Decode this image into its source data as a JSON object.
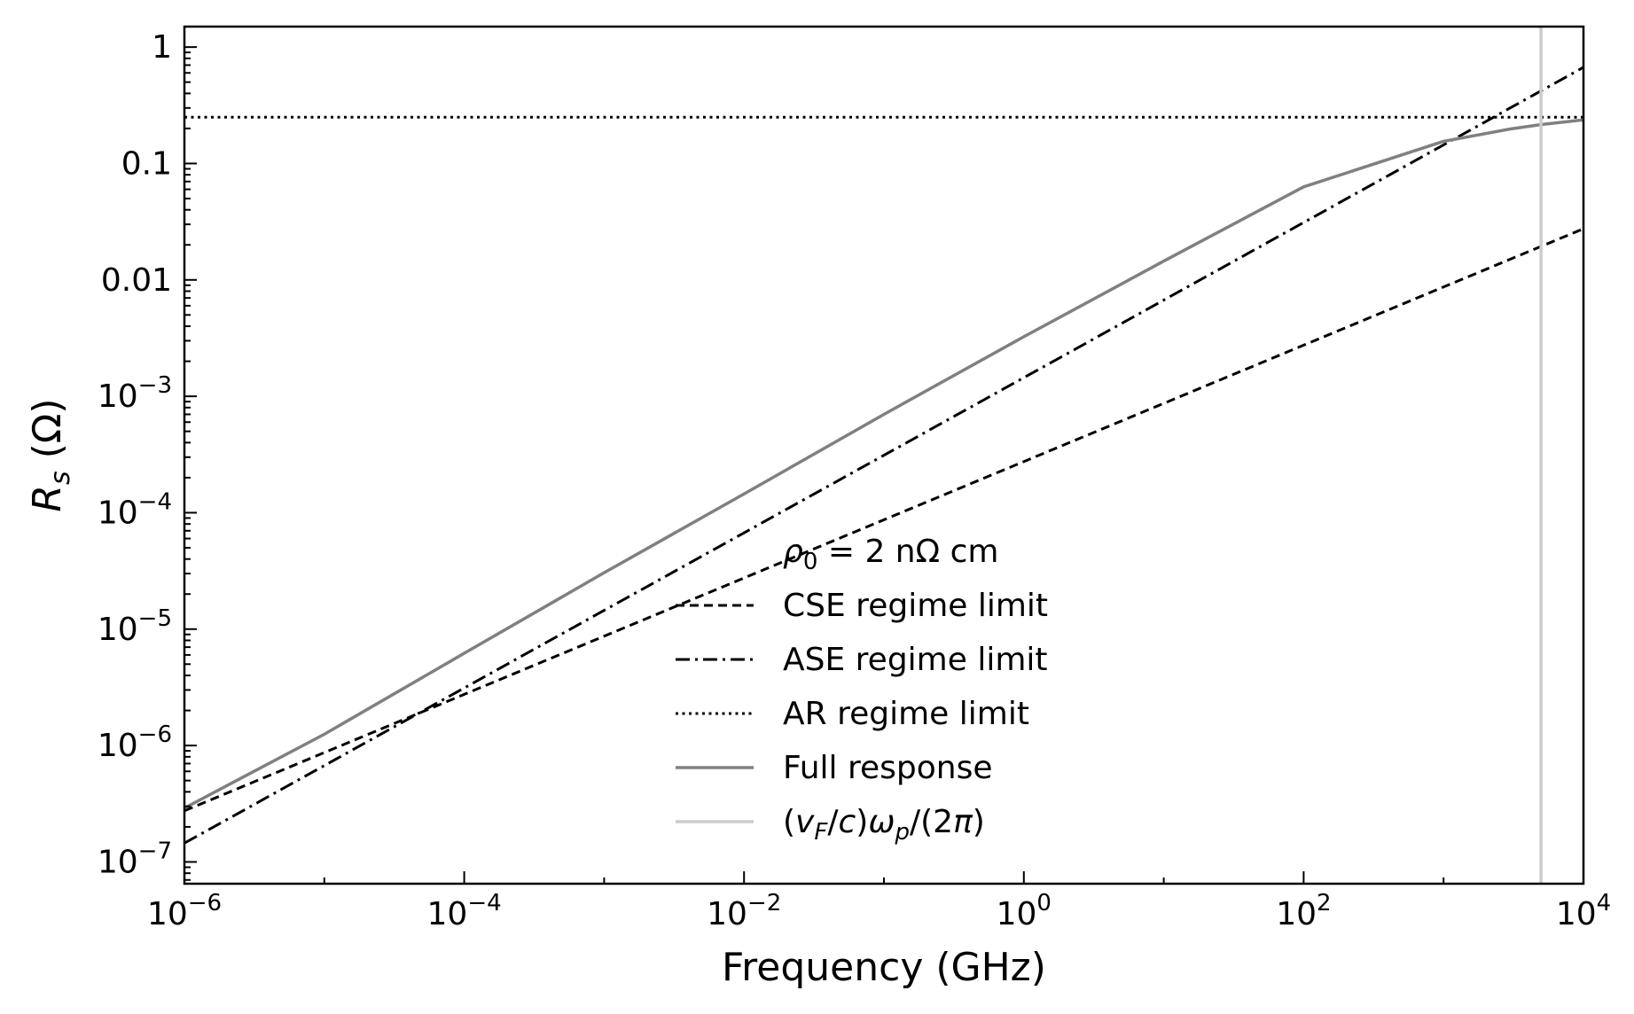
{
  "chart_data": {
    "type": "line",
    "xscale": "log",
    "yscale": "log",
    "xlabel": "Frequency (GHz)",
    "ylabel": {
      "main": "R",
      "sub": "s",
      "unit": " (Ω)"
    },
    "xlim": [
      1e-06,
      10000.0
    ],
    "ylim": [
      6.5e-08,
      1.5
    ],
    "x_ticks": [
      {
        "value": 1e-06,
        "base": "10",
        "exp": "−6"
      },
      {
        "value": 0.0001,
        "base": "10",
        "exp": "−4"
      },
      {
        "value": 0.01,
        "base": "10",
        "exp": "−2"
      },
      {
        "value": 1.0,
        "base": "10",
        "exp": "0"
      },
      {
        "value": 100.0,
        "base": "10",
        "exp": "2"
      },
      {
        "value": 10000.0,
        "base": "10",
        "exp": "4"
      }
    ],
    "y_ticks": [
      {
        "value": 1e-07,
        "base": "10",
        "exp": "−7",
        "text": ""
      },
      {
        "value": 1e-06,
        "base": "10",
        "exp": "−6",
        "text": ""
      },
      {
        "value": 1e-05,
        "base": "10",
        "exp": "−5",
        "text": ""
      },
      {
        "value": 0.0001,
        "base": "10",
        "exp": "−4",
        "text": ""
      },
      {
        "value": 0.001,
        "base": "10",
        "exp": "−3",
        "text": ""
      },
      {
        "value": 0.01,
        "base": "",
        "exp": "",
        "text": "0.01"
      },
      {
        "value": 0.1,
        "base": "",
        "exp": "",
        "text": "0.1"
      },
      {
        "value": 1,
        "base": "",
        "exp": "",
        "text": "1"
      }
    ],
    "grid": false,
    "legend_placement": "bottom-center",
    "legend_title": {
      "symbol": "ρ",
      "sub": "0",
      "text": " =  2 nΩ cm"
    },
    "series": [
      {
        "name": "CSE regime limit",
        "style": "dashed",
        "color": "#000000",
        "x": [
          1e-06,
          10000.0
        ],
        "y": [
          2.75e-07,
          0.0275
        ]
      },
      {
        "name": "ASE regime limit",
        "style": "dashdot",
        "color": "#000000",
        "x": [
          1e-06,
          10000.0
        ],
        "y": [
          1.45e-07,
          0.67
        ]
      },
      {
        "name": "AR regime limit",
        "style": "dotted",
        "color": "#000000",
        "x": [
          1e-06,
          10000.0
        ],
        "y": [
          0.25,
          0.25
        ]
      },
      {
        "name": "Full response",
        "style": "solid",
        "color": "#808080",
        "x": [
          1e-06,
          1e-05,
          0.0001,
          0.001,
          0.01,
          0.1,
          1,
          10,
          100,
          1000,
          3000,
          5000,
          10000
        ],
        "y": [
          2.9e-07,
          1.25e-06,
          6.2e-06,
          3.05e-05,
          0.000145,
          0.0007,
          0.00325,
          0.0145,
          0.063,
          0.155,
          0.198,
          0.216,
          0.237
        ]
      },
      {
        "name_parts": {
          "v": "v",
          "vsub": "F",
          "mid": "/",
          "c": "c",
          "close": ")",
          "w": "ω",
          "wsub": "p",
          "tail": "/(2",
          "pi": "π",
          "end": ")"
        },
        "style": "vline",
        "color": "#cccccc",
        "x": 4970
      }
    ]
  }
}
